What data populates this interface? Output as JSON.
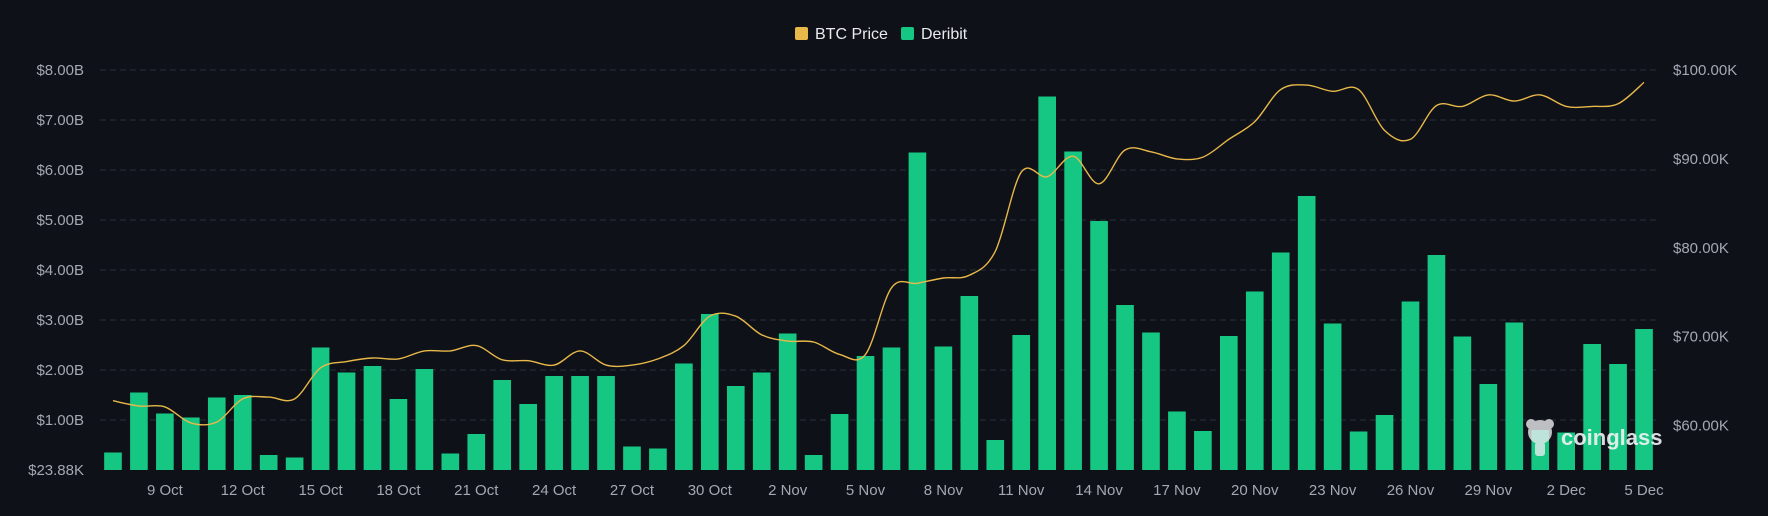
{
  "legend": [
    {
      "label": "BTC Price",
      "color": "#e8b84a"
    },
    {
      "label": "Deribit",
      "color": "#16c784"
    }
  ],
  "watermark": {
    "text": "coinglass"
  },
  "chart_data": {
    "type": "bar",
    "grid": true,
    "legend_position": "top-center",
    "categories": [
      "7 Oct",
      "8 Oct",
      "9 Oct",
      "10 Oct",
      "11 Oct",
      "12 Oct",
      "13 Oct",
      "14 Oct",
      "15 Oct",
      "16 Oct",
      "17 Oct",
      "18 Oct",
      "19 Oct",
      "20 Oct",
      "21 Oct",
      "22 Oct",
      "23 Oct",
      "24 Oct",
      "25 Oct",
      "26 Oct",
      "27 Oct",
      "28 Oct",
      "29 Oct",
      "30 Oct",
      "31 Oct",
      "1 Nov",
      "2 Nov",
      "3 Nov",
      "4 Nov",
      "5 Nov",
      "6 Nov",
      "7 Nov",
      "8 Nov",
      "9 Nov",
      "10 Nov",
      "11 Nov",
      "12 Nov",
      "13 Nov",
      "14 Nov",
      "15 Nov",
      "16 Nov",
      "17 Nov",
      "18 Nov",
      "19 Nov",
      "20 Nov",
      "21 Nov",
      "22 Nov",
      "23 Nov",
      "24 Nov",
      "25 Nov",
      "26 Nov",
      "27 Nov",
      "28 Nov",
      "29 Nov",
      "30 Nov",
      "1 Dec",
      "2 Dec",
      "3 Dec",
      "4 Dec",
      "5 Dec"
    ],
    "x_tick_labels": [
      "9 Oct",
      "12 Oct",
      "15 Oct",
      "18 Oct",
      "21 Oct",
      "24 Oct",
      "27 Oct",
      "30 Oct",
      "2 Nov",
      "5 Nov",
      "8 Nov",
      "11 Nov",
      "14 Nov",
      "17 Nov",
      "20 Nov",
      "23 Nov",
      "26 Nov",
      "29 Nov",
      "2 Dec",
      "5 Dec"
    ],
    "y_left": {
      "ticks": [
        "$23.88K",
        "$1.00B",
        "$2.00B",
        "$3.00B",
        "$4.00B",
        "$5.00B",
        "$6.00B",
        "$7.00B",
        "$8.00B"
      ],
      "range": [
        0,
        8
      ]
    },
    "y_right": {
      "ticks": [
        "$60.00K",
        "$70.00K",
        "$80.00K",
        "$90.00K",
        "$100.00K"
      ],
      "range": [
        55,
        100
      ]
    },
    "series": [
      {
        "name": "Deribit",
        "type": "bar",
        "axis": "left",
        "unit": "B",
        "color": "#16c784",
        "values": [
          0.35,
          1.55,
          1.13,
          1.05,
          1.45,
          1.5,
          0.3,
          0.25,
          2.45,
          1.95,
          2.08,
          1.42,
          2.02,
          0.33,
          0.72,
          1.8,
          1.32,
          1.88,
          1.88,
          1.88,
          0.47,
          0.43,
          2.13,
          3.12,
          1.68,
          1.95,
          2.73,
          0.3,
          1.12,
          2.28,
          2.45,
          6.35,
          2.47,
          3.48,
          0.6,
          2.7,
          7.47,
          6.37,
          4.98,
          3.3,
          2.75,
          1.17,
          0.78,
          2.68,
          3.57,
          4.35,
          5.48,
          2.93,
          0.77,
          1.1,
          3.37,
          4.3,
          2.67,
          1.72,
          2.95,
          0.8,
          0.75,
          2.52,
          2.12,
          2.82
        ]
      },
      {
        "name": "BTC Price",
        "type": "line",
        "axis": "right",
        "unit": "K",
        "color": "#e8b84a",
        "values": [
          62.8,
          62.2,
          62.1,
          60.3,
          60.4,
          63.0,
          63.2,
          63.0,
          66.5,
          67.2,
          67.6,
          67.5,
          68.4,
          68.4,
          69.0,
          67.4,
          67.3,
          66.8,
          68.4,
          66.8,
          66.8,
          67.5,
          69.0,
          72.3,
          72.3,
          70.2,
          69.5,
          69.4,
          68.0,
          68.0,
          75.5,
          76.0,
          76.6,
          76.9,
          79.6,
          88.5,
          88.0,
          90.3,
          87.2,
          91.0,
          90.8,
          90.0,
          90.2,
          92.2,
          94.2,
          97.8,
          98.3,
          97.6,
          97.8,
          93.2,
          92.2,
          96.0,
          95.9,
          97.2,
          96.5,
          97.2,
          95.9,
          95.9,
          96.2,
          98.6
        ]
      }
    ]
  }
}
